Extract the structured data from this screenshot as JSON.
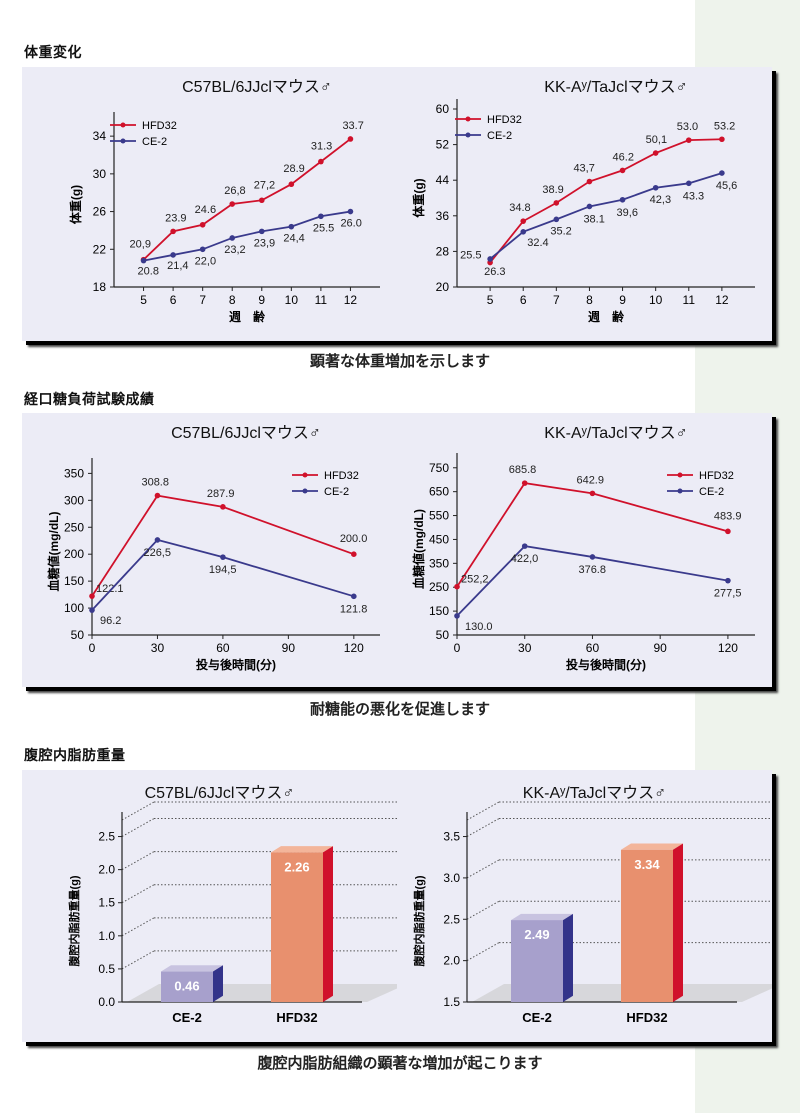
{
  "sections": [
    {
      "title": "体重変化",
      "caption": "顕著な体重増加を示します"
    },
    {
      "title": "経口糖負荷試験成績",
      "caption": "耐糖能の悪化を促進します"
    },
    {
      "title": "腹腔内脂肪重量",
      "caption": "腹腔内脂肪組織の顕著な増加が起こります"
    }
  ],
  "colors": {
    "hfd": "#d0112b",
    "ce": "#3a3a8c",
    "hfd_bar": "#e8906e",
    "hfd_bar_side": "#d0112b",
    "ce_bar": "#a7a0cc",
    "ce_bar_side": "#33338a",
    "panel_bg": "#ececf6",
    "green_strip": "#eef3ec"
  },
  "chart_data": [
    {
      "id": "weight-c57",
      "type": "line",
      "title": "C57BL/6JJclマウス♂",
      "xlabel": "週　齢",
      "ylabel": "体重(g)",
      "x": [
        5,
        6,
        7,
        8,
        9,
        10,
        11,
        12
      ],
      "xticks": [
        "5",
        "6",
        "7",
        "8",
        "9",
        "10",
        "11",
        "12"
      ],
      "xlim": [
        4,
        13
      ],
      "ylim": [
        18,
        35.5
      ],
      "yticks": [
        18,
        22,
        26,
        30,
        34
      ],
      "legend": "top-left",
      "series": [
        {
          "name": "HFD32",
          "values": [
            20.9,
            23.9,
            24.6,
            26.8,
            27.2,
            28.9,
            31.3,
            33.7
          ],
          "labels": [
            "20,9",
            "23.9",
            "24.6",
            "26,8",
            "27,2",
            "28.9",
            "31.3",
            "33.7"
          ]
        },
        {
          "name": "CE-2",
          "values": [
            20.8,
            21.4,
            22.0,
            23.2,
            23.9,
            24.4,
            25.5,
            26.0
          ],
          "labels": [
            "20.8",
            "21,4",
            "22,0",
            "23,2",
            "23,9",
            "24,4",
            "25.5",
            "26.0"
          ]
        }
      ]
    },
    {
      "id": "weight-kk",
      "type": "line",
      "title": "KK-Aʸ/TaJclマウス♂",
      "xlabel": "週　齢",
      "ylabel": "体重(g)",
      "x": [
        5,
        6,
        7,
        8,
        9,
        10,
        11,
        12
      ],
      "xticks": [
        "5",
        "6",
        "7",
        "8",
        "9",
        "10",
        "11",
        "12"
      ],
      "xlim": [
        4,
        13
      ],
      "ylim": [
        20,
        60
      ],
      "yticks": [
        20,
        28,
        36,
        44,
        52,
        60
      ],
      "legend": "top-left",
      "series": [
        {
          "name": "HFD32",
          "values": [
            25.5,
            34.8,
            38.9,
            43.7,
            46.2,
            50.1,
            53.0,
            53.2
          ],
          "labels": [
            "25.5",
            "34.8",
            "38.9",
            "43,7",
            "46.2",
            "50,1",
            "53.0",
            "53.2"
          ]
        },
        {
          "name": "CE-2",
          "values": [
            26.3,
            32.4,
            35.2,
            38.1,
            39.6,
            42.3,
            43.3,
            45.6
          ],
          "labels": [
            "26.3",
            "32.4",
            "35.2",
            "38.1",
            "39,6",
            "42,3",
            "43.3",
            "45,6"
          ]
        }
      ]
    },
    {
      "id": "ogtt-c57",
      "type": "line",
      "title": "C57BL/6JJclマウス♂",
      "xlabel": "投与後時間(分)",
      "ylabel": "血糖値(mg/dL)",
      "x": [
        0,
        30,
        60,
        120
      ],
      "xticks": [
        "0",
        "30",
        "60",
        "90",
        "120"
      ],
      "xtick_values": [
        0,
        30,
        60,
        90,
        120
      ],
      "xlim": [
        0,
        132
      ],
      "ylim": [
        50,
        360
      ],
      "yticks": [
        50,
        100,
        150,
        200,
        250,
        300,
        350
      ],
      "legend": "top-right",
      "series": [
        {
          "name": "HFD32",
          "values": [
            122.1,
            308.8,
            287.9,
            200.0
          ],
          "labels": [
            "122.1",
            "308.8",
            "287.9",
            "200.0"
          ]
        },
        {
          "name": "CE-2",
          "values": [
            96.2,
            226.5,
            194.5,
            121.8
          ],
          "labels": [
            "96.2",
            "226,5",
            "194,5",
            "121.8"
          ]
        }
      ]
    },
    {
      "id": "ogtt-kk",
      "type": "line",
      "title": "KK-Aʸ/TaJclマウス♂",
      "xlabel": "投与後時間(分)",
      "ylabel": "血糖値(mg/dL)",
      "x": [
        0,
        30,
        60,
        120
      ],
      "xticks": [
        "0",
        "30",
        "60",
        "90",
        "120"
      ],
      "xtick_values": [
        0,
        30,
        60,
        90,
        120
      ],
      "xlim": [
        0,
        132
      ],
      "ylim": [
        50,
        770
      ],
      "yticks": [
        50,
        150,
        250,
        350,
        450,
        550,
        650,
        750
      ],
      "legend": "top-right",
      "series": [
        {
          "name": "HFD32",
          "values": [
            252.2,
            685.8,
            642.9,
            483.9
          ],
          "labels": [
            "252,2",
            "685.8",
            "642.9",
            "483.9"
          ]
        },
        {
          "name": "CE-2",
          "values": [
            130.0,
            422.0,
            376.8,
            277.5
          ],
          "labels": [
            "130.0",
            "422,0",
            "376.8",
            "277,5"
          ]
        }
      ]
    },
    {
      "id": "fat-c57",
      "type": "bar",
      "title": "C57BL/6JJclマウス♂",
      "ylabel": "腹腔内脂肪重量(g)",
      "categories": [
        "CE-2",
        "HFD32"
      ],
      "values": [
        0.46,
        2.26
      ],
      "value_labels": [
        "0.46",
        "2.26"
      ],
      "ylim": [
        0,
        2.75
      ],
      "yticks": [
        "0.0",
        "0.5",
        "1.0",
        "1.5",
        "2.0",
        "2.5"
      ],
      "ytick_values": [
        0,
        0.5,
        1.0,
        1.5,
        2.0,
        2.5
      ],
      "grid": true
    },
    {
      "id": "fat-kk",
      "type": "bar",
      "title": "KK-Aʸ/TaJclマウス♂",
      "ylabel": "腹腔内脂肪重量(g)",
      "categories": [
        "CE-2",
        "HFD32"
      ],
      "values": [
        2.49,
        3.34
      ],
      "value_labels": [
        "2.49",
        "3.34"
      ],
      "ylim": [
        1.5,
        3.7
      ],
      "yticks": [
        "1.5",
        "2.0",
        "2.5",
        "3.0",
        "3.5"
      ],
      "ytick_values": [
        1.5,
        2.0,
        2.5,
        3.0,
        3.5
      ],
      "grid": true
    }
  ]
}
